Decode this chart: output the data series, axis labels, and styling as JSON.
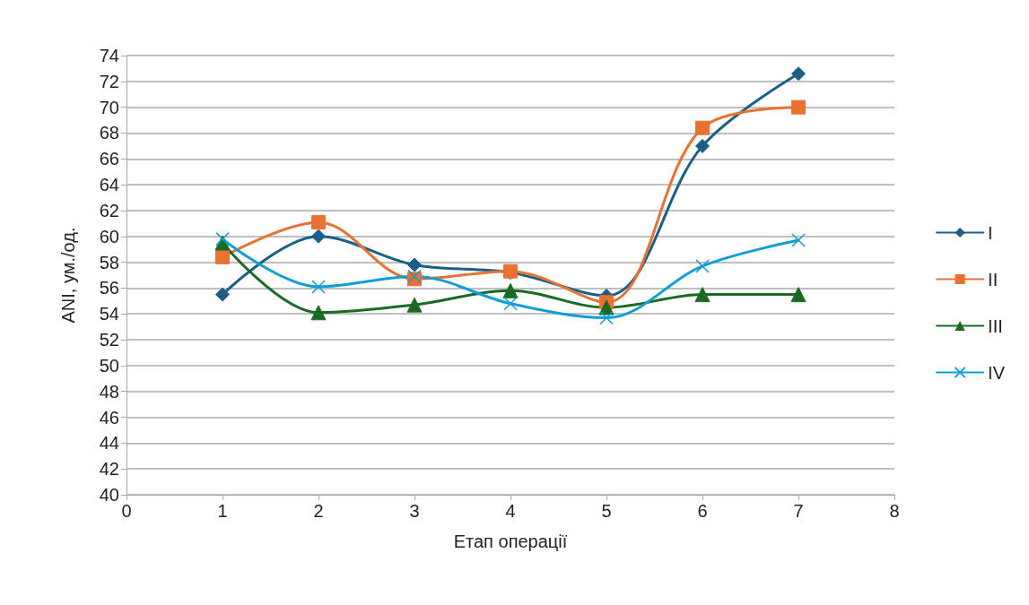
{
  "chart_data": {
    "type": "line",
    "xlabel": "Етап операції",
    "ylabel": "ANI, ум./од.",
    "x": [
      1,
      2,
      3,
      4,
      5,
      6,
      7
    ],
    "series": [
      {
        "name": "I",
        "color": "#1a5f87",
        "marker": "diamond",
        "values": [
          55.5,
          60.0,
          57.8,
          57.2,
          55.4,
          67.0,
          72.6
        ]
      },
      {
        "name": "II",
        "color": "#e97132",
        "marker": "square",
        "values": [
          58.4,
          61.1,
          56.7,
          57.3,
          54.9,
          68.4,
          70.0
        ]
      },
      {
        "name": "III",
        "color": "#196b24",
        "marker": "triangle",
        "values": [
          59.5,
          54.1,
          54.7,
          55.8,
          54.5,
          55.5,
          55.5
        ]
      },
      {
        "name": "IV",
        "color": "#0f9ed5",
        "marker": "cross",
        "values": [
          59.8,
          56.1,
          56.9,
          54.8,
          53.7,
          57.7,
          59.7
        ]
      }
    ],
    "xlim": [
      0,
      8
    ],
    "xticks": [
      0,
      1,
      2,
      3,
      4,
      5,
      6,
      7,
      8
    ],
    "ylim": [
      40,
      74
    ],
    "yticks": [
      40,
      42,
      44,
      46,
      48,
      50,
      52,
      54,
      56,
      58,
      60,
      62,
      64,
      66,
      68,
      70,
      72,
      74
    ],
    "grid": "y",
    "legend": "right",
    "line_style": "solid"
  }
}
